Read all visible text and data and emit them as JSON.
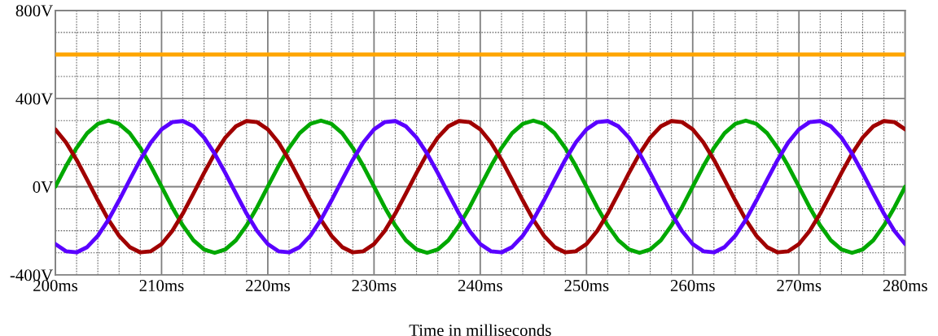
{
  "chart_data": {
    "type": "line",
    "xlabel": "Time in milliseconds",
    "x": [
      200,
      201,
      202,
      203,
      204,
      205,
      206,
      207,
      208,
      209,
      210,
      211,
      212,
      213,
      214,
      215,
      216,
      217,
      218,
      219,
      220,
      221,
      222,
      223,
      224,
      225,
      226,
      227,
      228,
      229,
      230,
      231,
      232,
      233,
      234,
      235,
      236,
      237,
      238,
      239,
      240,
      241,
      242,
      243,
      244,
      245,
      246,
      247,
      248,
      249,
      250,
      251,
      252,
      253,
      254,
      255,
      256,
      257,
      258,
      259,
      260,
      261,
      262,
      263,
      264,
      265,
      266,
      267,
      268,
      269,
      270,
      271,
      272,
      273,
      274,
      275,
      276,
      277,
      278,
      279,
      280
    ],
    "series": [
      {
        "color": "#ffa500",
        "x": [
          200,
          280
        ],
        "values": [
          600,
          600
        ]
      },
      {
        "color": "#00a800",
        "values": [
          0,
          93,
          176,
          243,
          285,
          300,
          285,
          243,
          176,
          93,
          0,
          -93,
          -176,
          -243,
          -285,
          -300,
          -285,
          -243,
          -176,
          -93,
          0,
          93,
          176,
          243,
          285,
          300,
          285,
          243,
          176,
          93,
          0,
          -93,
          -176,
          -243,
          -285,
          -300,
          -285,
          -243,
          -176,
          -93,
          0,
          93,
          176,
          243,
          285,
          300,
          285,
          243,
          176,
          93,
          0,
          -93,
          -176,
          -243,
          -285,
          -300,
          -285,
          -243,
          -176,
          -93,
          0,
          93,
          176,
          243,
          285,
          300,
          285,
          243,
          176,
          93,
          0,
          -93,
          -176,
          -243,
          -285,
          -300,
          -285,
          -243,
          -176,
          -93,
          0
        ]
      },
      {
        "color": "#a00000",
        "values": [
          260,
          201,
          122,
          31,
          -62,
          -150,
          -223,
          -274,
          -298,
          -293,
          -260,
          -201,
          -122,
          -31,
          62,
          150,
          223,
          274,
          298,
          293,
          260,
          201,
          122,
          31,
          -62,
          -150,
          -223,
          -274,
          -298,
          -293,
          -260,
          -201,
          -122,
          -31,
          62,
          150,
          223,
          274,
          298,
          293,
          260,
          201,
          122,
          31,
          -62,
          -150,
          -223,
          -274,
          -298,
          -293,
          -260,
          -201,
          -122,
          -31,
          62,
          150,
          223,
          274,
          298,
          293,
          260,
          201,
          122,
          31,
          -62,
          -150,
          -223,
          -274,
          -298,
          -293,
          -260,
          -201,
          -122,
          -31,
          62,
          150,
          223,
          274,
          298,
          293,
          260
        ]
      },
      {
        "color": "#5a00ff",
        "values": [
          -260,
          -293,
          -298,
          -274,
          -223,
          -150,
          -62,
          31,
          122,
          201,
          260,
          293,
          298,
          274,
          223,
          150,
          62,
          -31,
          -122,
          -201,
          -260,
          -293,
          -298,
          -274,
          -223,
          -150,
          -62,
          31,
          122,
          201,
          260,
          293,
          298,
          274,
          223,
          150,
          62,
          -31,
          -122,
          -201,
          -260,
          -293,
          -298,
          -274,
          -223,
          -150,
          -62,
          31,
          122,
          201,
          260,
          293,
          298,
          274,
          223,
          150,
          62,
          -31,
          -122,
          -201,
          -260,
          -293,
          -298,
          -274,
          -223,
          -150,
          -62,
          31,
          122,
          201,
          260,
          293,
          298,
          274,
          223,
          150,
          62,
          -31,
          -122,
          -201,
          -260
        ]
      }
    ],
    "xlim": [
      200,
      280
    ],
    "xticks": [
      {
        "value": 200,
        "label": "200ms"
      },
      {
        "value": 210,
        "label": "210ms"
      },
      {
        "value": 220,
        "label": "220ms"
      },
      {
        "value": 230,
        "label": "230ms"
      },
      {
        "value": 240,
        "label": "240ms"
      },
      {
        "value": 250,
        "label": "250ms"
      },
      {
        "value": 260,
        "label": "260ms"
      },
      {
        "value": 270,
        "label": "270ms"
      },
      {
        "value": 280,
        "label": "280ms"
      }
    ],
    "ylim": [
      -400,
      800
    ],
    "yticks": [
      {
        "value": -400,
        "label": "-400V"
      },
      {
        "value": 0,
        "label": "0V"
      },
      {
        "value": 400,
        "label": "400V"
      },
      {
        "value": 800,
        "label": "800V"
      }
    ],
    "grid": true
  }
}
